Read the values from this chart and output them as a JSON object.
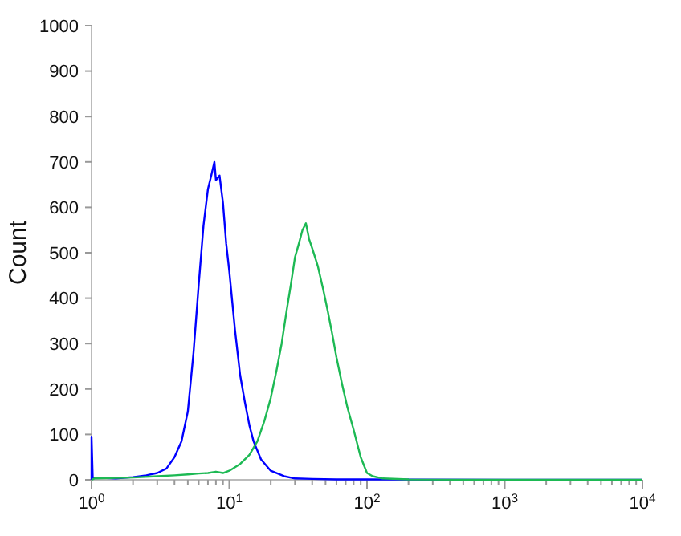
{
  "chart_data": {
    "type": "line",
    "ylabel": "Count",
    "log": "x",
    "grid": false,
    "marker": "none",
    "line_style": "solid",
    "xlim": [
      1,
      10000
    ],
    "ylim": [
      0,
      1000
    ],
    "xticks": [
      {
        "value": 1,
        "label": "10$^{0}$"
      },
      {
        "value": 2,
        "label": null
      },
      {
        "value": 3,
        "label": null
      },
      {
        "value": 4,
        "label": null
      },
      {
        "value": 5,
        "label": null
      },
      {
        "value": 6,
        "label": null
      },
      {
        "value": 7,
        "label": null
      },
      {
        "value": 8,
        "label": null
      },
      {
        "value": 9,
        "label": null
      },
      {
        "value": 10,
        "label": "10$^{1}$"
      },
      {
        "value": 20,
        "label": null
      },
      {
        "value": 30,
        "label": null
      },
      {
        "value": 40,
        "label": null
      },
      {
        "value": 50,
        "label": null
      },
      {
        "value": 60,
        "label": null
      },
      {
        "value": 70,
        "label": null
      },
      {
        "value": 80,
        "label": null
      },
      {
        "value": 90,
        "label": null
      },
      {
        "value": 100,
        "label": "10$^{2}$"
      },
      {
        "value": 200,
        "label": null
      },
      {
        "value": 300,
        "label": null
      },
      {
        "value": 400,
        "label": null
      },
      {
        "value": 500,
        "label": null
      },
      {
        "value": 600,
        "label": null
      },
      {
        "value": 700,
        "label": null
      },
      {
        "value": 800,
        "label": null
      },
      {
        "value": 900,
        "label": null
      },
      {
        "value": 1000,
        "label": "10$^{3}$"
      },
      {
        "value": 2000,
        "label": null
      },
      {
        "value": 3000,
        "label": null
      },
      {
        "value": 4000,
        "label": null
      },
      {
        "value": 5000,
        "label": null
      },
      {
        "value": 6000,
        "label": null
      },
      {
        "value": 7000,
        "label": null
      },
      {
        "value": 8000,
        "label": null
      },
      {
        "value": 9000,
        "label": null
      },
      {
        "value": 10000,
        "label": "10$^{4}$"
      }
    ],
    "yticks": [
      0,
      100,
      200,
      300,
      400,
      500,
      600,
      700,
      800,
      900,
      1000
    ],
    "series": [
      {
        "color": "#0000ff",
        "x": [
          1,
          1,
          1.02,
          1.5,
          2,
          2.5,
          3,
          3.5,
          4,
          4.5,
          5,
          5.5,
          6,
          6.5,
          7,
          7.4,
          7.8,
          8,
          8.5,
          9,
          9.5,
          10,
          11,
          12,
          13,
          14,
          15,
          17,
          20,
          25,
          30,
          40,
          60,
          100,
          1000,
          10000
        ],
        "values": [
          0,
          95,
          5,
          3,
          6,
          10,
          15,
          25,
          50,
          85,
          150,
          280,
          430,
          560,
          640,
          670,
          700,
          660,
          670,
          610,
          520,
          460,
          330,
          230,
          170,
          120,
          85,
          45,
          20,
          8,
          3,
          2,
          1,
          1,
          0,
          0
        ]
      },
      {
        "color": "#1db954",
        "x": [
          1,
          1.05,
          2,
          3,
          4,
          5,
          6,
          7,
          8,
          9,
          10,
          12,
          14,
          16,
          18,
          20,
          22,
          24,
          26,
          28,
          30,
          32,
          34,
          36,
          38,
          40,
          44,
          48,
          52,
          56,
          60,
          66,
          72,
          80,
          90,
          100,
          110,
          130,
          200,
          1000,
          10000
        ],
        "values": [
          0,
          3,
          5,
          8,
          10,
          12,
          14,
          15,
          18,
          15,
          20,
          35,
          55,
          85,
          130,
          180,
          240,
          300,
          370,
          430,
          490,
          520,
          550,
          565,
          530,
          510,
          470,
          420,
          370,
          320,
          270,
          210,
          160,
          110,
          50,
          15,
          8,
          3,
          1,
          0,
          0
        ]
      }
    ]
  }
}
